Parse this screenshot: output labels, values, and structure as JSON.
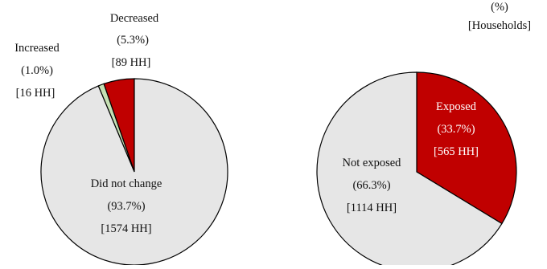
{
  "chart_data": [
    {
      "type": "pie",
      "slices": [
        {
          "label": "Decreased",
          "pct": "(5.3%)",
          "hh": "[89 HH]",
          "value": 5.3,
          "color": "#c00000"
        },
        {
          "label": "Increased",
          "pct": "(1.0%)",
          "hh": "[16 HH]",
          "value": 1.0,
          "color": "#c6e0b4"
        },
        {
          "label": "Did not change",
          "pct": "(93.7%)",
          "hh": "[1574 HH]",
          "value": 93.7,
          "color": "#e6e6e6"
        }
      ]
    },
    {
      "type": "pie",
      "units": [
        "(%)",
        "[Households]"
      ],
      "slices": [
        {
          "label": "Exposed",
          "pct": "(33.7%)",
          "hh": "[565 HH]",
          "value": 33.7,
          "color": "#c00000"
        },
        {
          "label": "Not exposed",
          "pct": "(66.3%)",
          "hh": "[1114 HH]",
          "value": 66.3,
          "color": "#e6e6e6"
        }
      ]
    }
  ]
}
